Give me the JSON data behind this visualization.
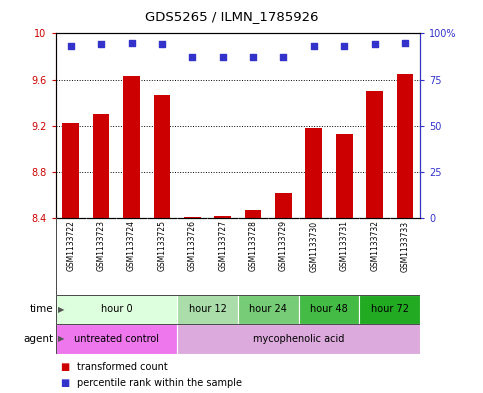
{
  "title": "GDS5265 / ILMN_1785926",
  "samples": [
    "GSM1133722",
    "GSM1133723",
    "GSM1133724",
    "GSM1133725",
    "GSM1133726",
    "GSM1133727",
    "GSM1133728",
    "GSM1133729",
    "GSM1133730",
    "GSM1133731",
    "GSM1133732",
    "GSM1133733"
  ],
  "bar_values": [
    9.22,
    9.3,
    9.63,
    9.47,
    8.41,
    8.42,
    8.47,
    8.62,
    9.18,
    9.13,
    9.5,
    9.65
  ],
  "percentile_values": [
    93,
    94,
    95,
    94,
    87,
    87,
    87,
    87,
    93,
    93,
    94,
    95
  ],
  "ylim_left": [
    8.4,
    10.0
  ],
  "ylim_right": [
    0,
    100
  ],
  "yticks_left": [
    8.4,
    8.8,
    9.2,
    9.6,
    10.0
  ],
  "yticks_right": [
    0,
    25,
    50,
    75,
    100
  ],
  "ytick_labels_left": [
    "8.4",
    "8.8",
    "9.2",
    "9.6",
    "10"
  ],
  "ytick_labels_right": [
    "0",
    "25",
    "50",
    "75",
    "100%"
  ],
  "bar_color": "#cc0000",
  "dot_color": "#3333cc",
  "time_groups": [
    {
      "label": "hour 0",
      "start": 0,
      "end": 3,
      "color": "#ddffdd"
    },
    {
      "label": "hour 12",
      "start": 4,
      "end": 5,
      "color": "#aaddaa"
    },
    {
      "label": "hour 24",
      "start": 6,
      "end": 7,
      "color": "#77cc77"
    },
    {
      "label": "hour 48",
      "start": 8,
      "end": 9,
      "color": "#44bb44"
    },
    {
      "label": "hour 72",
      "start": 10,
      "end": 11,
      "color": "#22aa22"
    }
  ],
  "agent_groups": [
    {
      "label": "untreated control",
      "start": 0,
      "end": 3,
      "color": "#ee77ee"
    },
    {
      "label": "mycophenolic acid",
      "start": 4,
      "end": 11,
      "color": "#ddaadd"
    }
  ],
  "background_color": "#ffffff",
  "plot_bg_color": "#ffffff",
  "sample_bg_color": "#cccccc",
  "border_color": "#000000"
}
